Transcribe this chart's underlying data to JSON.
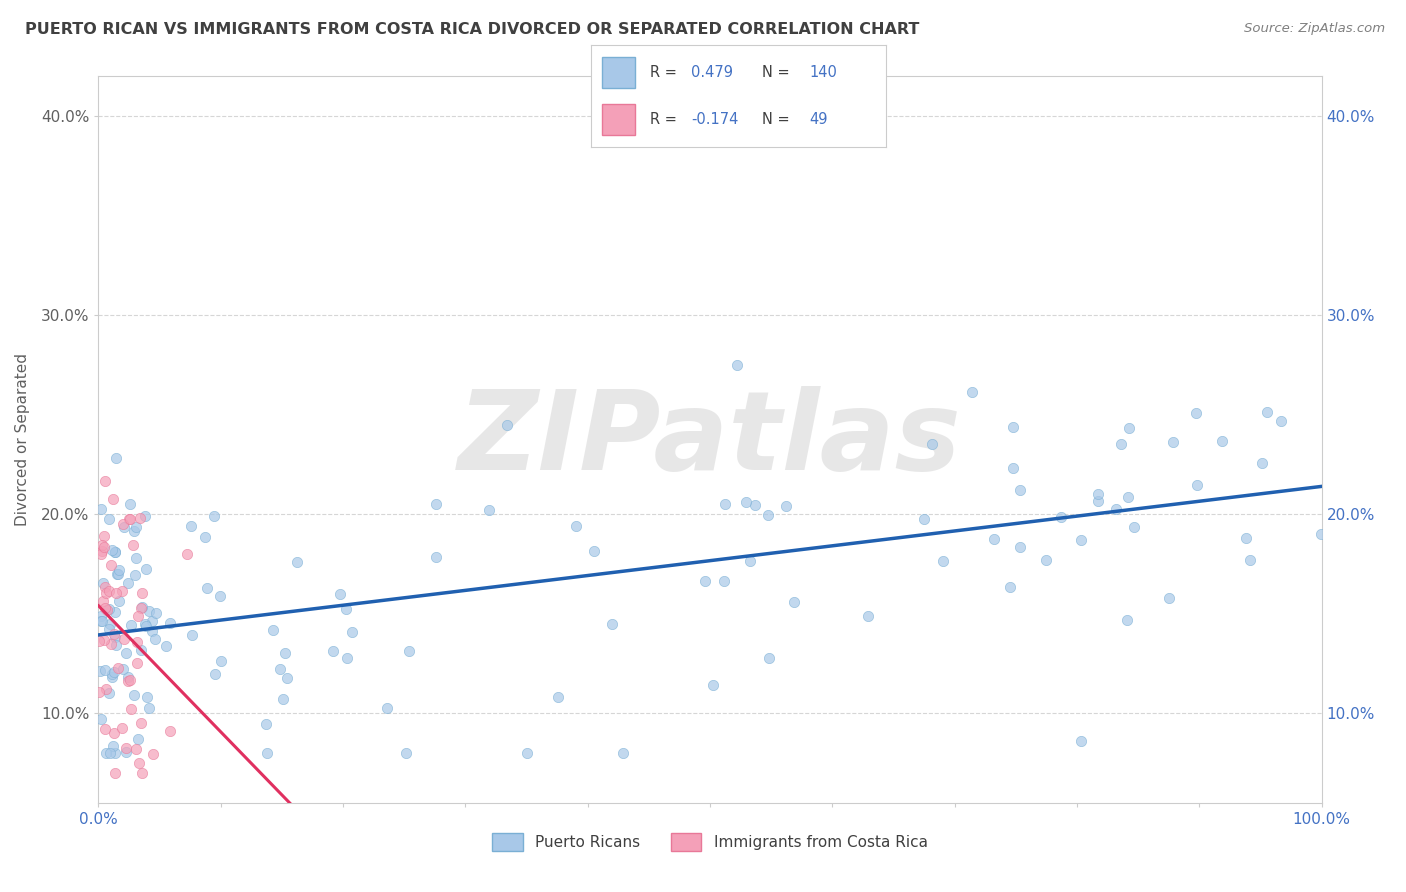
{
  "title": "PUERTO RICAN VS IMMIGRANTS FROM COSTA RICA DIVORCED OR SEPARATED CORRELATION CHART",
  "source_text": "Source: ZipAtlas.com",
  "ylabel": "Divorced or Separated",
  "watermark": "ZIPatlas",
  "xlim": [
    0.0,
    1.0
  ],
  "ylim": [
    0.055,
    0.42
  ],
  "yticks": [
    0.1,
    0.2,
    0.3,
    0.4
  ],
  "ytick_labels": [
    "10.0%",
    "20.0%",
    "30.0%",
    "40.0%"
  ],
  "xtick_positions": [
    0.0,
    0.1,
    0.2,
    0.3,
    0.4,
    0.5,
    0.6,
    0.7,
    0.8,
    0.9,
    1.0
  ],
  "xtick_labels_show": {
    "0.0": "0.0%",
    "1.0": "100.0%"
  },
  "blue_R": 0.479,
  "blue_N": 140,
  "pink_R": -0.174,
  "pink_N": 49,
  "legend_label_blue": "Puerto Ricans",
  "legend_label_pink": "Immigrants from Costa Rica",
  "blue_scatter_color": "#a8c8e8",
  "blue_scatter_edge": "#7aafd4",
  "pink_scatter_color": "#f4a0b8",
  "pink_scatter_edge": "#e87898",
  "blue_line_color": "#2060b0",
  "pink_line_color": "#e03060",
  "pink_dashed_color": "#f0a0b8",
  "background_color": "#ffffff",
  "grid_color": "#cccccc",
  "title_color": "#404040",
  "source_color": "#808080",
  "accent_blue": "#4472c4",
  "watermark_color": "#d8d8d8"
}
